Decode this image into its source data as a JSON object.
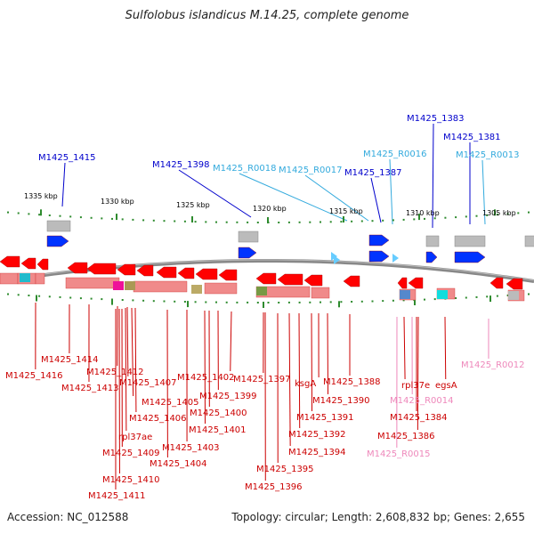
{
  "title": "Sulfolobus islandicus M.14.25, complete genome",
  "accession": "Accession: NC_012588",
  "summary": "Topology: circular; Length: 2,608,832 bp; Genes: 2,655",
  "colors": {
    "cds": "#ff0000",
    "cds_label": "#cc0000",
    "trna": "#66ccff",
    "trna_upper_label": "#33aadd",
    "trna_lower_label": "#ee88bb",
    "minus_cds_label": "#0000cc",
    "minus_cds": "#0033ff",
    "backbone": "#888888",
    "tick": "#2e8b2e"
  },
  "scale": {
    "unit": "kbp",
    "ticks": [
      "1335 kbp",
      "1330 kbp",
      "1325 kbp",
      "1320 kbp",
      "1315 kbp",
      "1310 kbp",
      "1305 kbp"
    ]
  },
  "upper_labels": [
    {
      "text": "M1425_1415",
      "type": "cds"
    },
    {
      "text": "M1425_1398",
      "type": "cds"
    },
    {
      "text": "M1425_R0018",
      "type": "trna"
    },
    {
      "text": "M1425_R0017",
      "type": "trna"
    },
    {
      "text": "M1425_1387",
      "type": "cds"
    },
    {
      "text": "M1425_R0016",
      "type": "trna"
    },
    {
      "text": "M1425_1383",
      "type": "cds"
    },
    {
      "text": "M1425_1381",
      "type": "cds"
    },
    {
      "text": "M1425_R0013",
      "type": "trna"
    }
  ],
  "lower_labels": [
    {
      "text": "M1425_1416",
      "type": "cds"
    },
    {
      "text": "M1425_1414",
      "type": "cds"
    },
    {
      "text": "M1425_1413",
      "type": "cds"
    },
    {
      "text": "M1425_1412",
      "type": "cds"
    },
    {
      "text": "M1425_1407",
      "type": "cds"
    },
    {
      "text": "M1425_1405",
      "type": "cds"
    },
    {
      "text": "M1425_1406",
      "type": "cds"
    },
    {
      "text": "rpl37ae",
      "type": "cds"
    },
    {
      "text": "M1425_1409",
      "type": "cds"
    },
    {
      "text": "M1425_1410",
      "type": "cds"
    },
    {
      "text": "M1425_1411",
      "type": "cds"
    },
    {
      "text": "M1425_1404",
      "type": "cds"
    },
    {
      "text": "M1425_1403",
      "type": "cds"
    },
    {
      "text": "M1425_1401",
      "type": "cds"
    },
    {
      "text": "M1425_1400",
      "type": "cds"
    },
    {
      "text": "M1425_1399",
      "type": "cds"
    },
    {
      "text": "M1425_1402",
      "type": "cds"
    },
    {
      "text": "M1425_1397",
      "type": "cds"
    },
    {
      "text": "M1425_1396",
      "type": "cds"
    },
    {
      "text": "M1425_1395",
      "type": "cds"
    },
    {
      "text": "M1425_1394",
      "type": "cds"
    },
    {
      "text": "M1425_1392",
      "type": "cds"
    },
    {
      "text": "M1425_1391",
      "type": "cds"
    },
    {
      "text": "ksgA",
      "type": "cds"
    },
    {
      "text": "M1425_1390",
      "type": "cds"
    },
    {
      "text": "M1425_1388",
      "type": "cds"
    },
    {
      "text": "rpl37e",
      "type": "cds"
    },
    {
      "text": "egsA",
      "type": "cds"
    },
    {
      "text": "M1425_R0014",
      "type": "trna"
    },
    {
      "text": "M1425_1384",
      "type": "cds"
    },
    {
      "text": "M1425_1386",
      "type": "cds"
    },
    {
      "text": "M1425_R0015",
      "type": "trna"
    },
    {
      "text": "M1425_R0012",
      "type": "trna"
    }
  ]
}
